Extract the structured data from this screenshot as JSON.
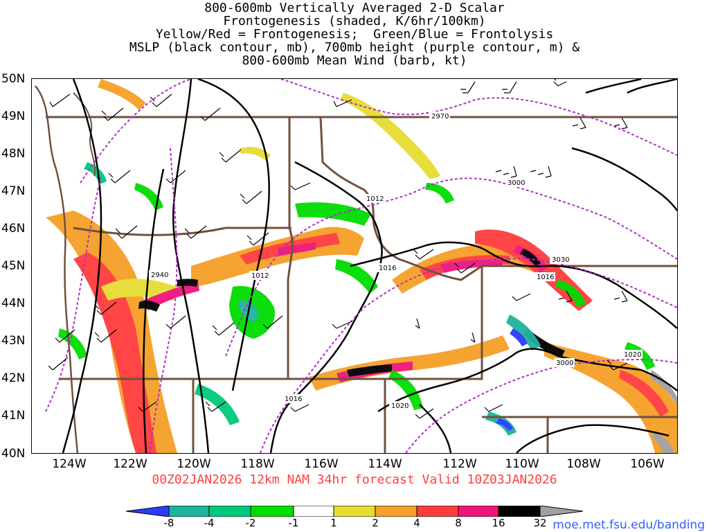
{
  "header": {
    "line1": "800-600mb Vertically Averaged 2-D Scalar",
    "line2": "Frontogenesis (shaded, K/6hr/100km)",
    "line3": "Yellow/Red = Frontogenesis;  Green/Blue = Frontolysis",
    "line4": "MSLP (black contour, mb), 700mb height (purple contour, m) &",
    "line5": "800-600mb Mean Wind (barb, kt)"
  },
  "axes": {
    "lat_labels": [
      "50N",
      "49N",
      "48N",
      "47N",
      "46N",
      "45N",
      "44N",
      "43N",
      "42N",
      "41N",
      "40N"
    ],
    "lon_labels": [
      "124W",
      "122W",
      "120W",
      "118W",
      "116W",
      "114W",
      "112W",
      "110W",
      "108W",
      "106W"
    ],
    "lat_range": [
      40,
      50
    ],
    "lon_range": [
      -125,
      -105
    ]
  },
  "valid_line": "00Z02JAN2026 12km NAM 34hr forecast Valid 10Z03JAN2026",
  "contour_labels": {
    "mslp": [
      "1012",
      "1016",
      "1012",
      "1016",
      "1016",
      "1020",
      "1020"
    ],
    "height700": [
      "2970",
      "3000",
      "2940",
      "3030",
      "3000"
    ]
  },
  "colorbar": {
    "ticks": [
      "-8",
      "-4",
      "-2",
      "-1",
      "1",
      "2",
      "4",
      "8",
      "16",
      "32"
    ],
    "colors": [
      "#2a3cff",
      "#1eb49c",
      "#00c87a",
      "#00dc00",
      "#ffffff",
      "#e6dc32",
      "#f5a028",
      "#ff3c3c",
      "#f0147a",
      "#000000",
      "#a0a0a0"
    ]
  },
  "credit": "moe.met.fsu.edu/banding",
  "colors": {
    "state_border": "#705040",
    "mslp": "#000000",
    "height700": "#b030c8",
    "valid_text": "#ff4040",
    "credit_text": "#2e5fff"
  }
}
